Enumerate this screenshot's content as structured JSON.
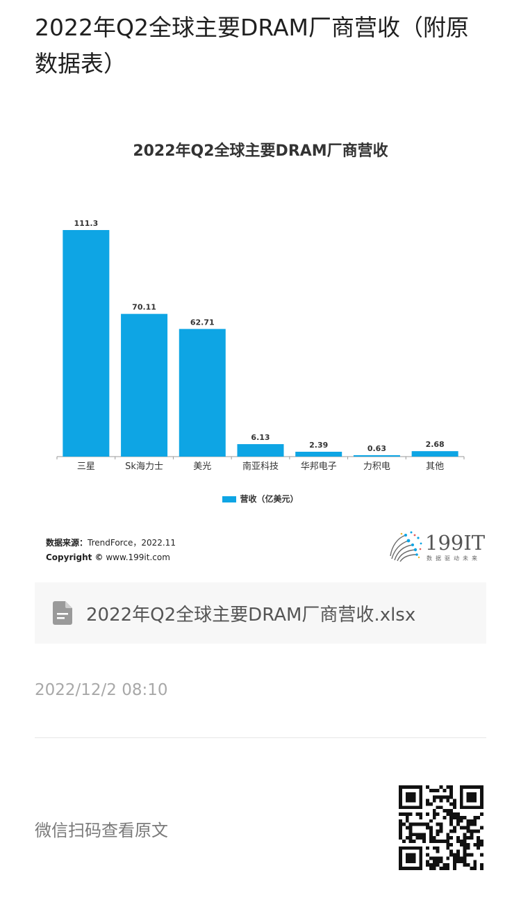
{
  "article": {
    "title": "2022年Q2全球主要DRAM厂商营收（附原数据表）",
    "date": "2022/12/2 08:10"
  },
  "chart": {
    "source_label": "数据来源：",
    "source_value": "TrendForce，2022.11",
    "copyright_label": "Copyright ©",
    "copyright_value": " www.199it.com",
    "brand_name": "199IT",
    "brand_slogan": "数据驱动未来"
  },
  "chart_data": {
    "type": "bar",
    "title": "2022年Q2全球主要DRAM厂商营收",
    "categories": [
      "三星",
      "Sk海力士",
      "美光",
      "南亚科技",
      "华邦电子",
      "力积电",
      "其他"
    ],
    "series": [
      {
        "name": "营收（亿美元）",
        "values": [
          111.3,
          70.11,
          62.71,
          6.13,
          2.39,
          0.63,
          2.68
        ]
      }
    ],
    "value_labels": [
      "111.3",
      "70.11",
      "62.71",
      "6.13",
      "2.39",
      "0.63",
      "2.68"
    ],
    "ylim": [
      0,
      111.3
    ],
    "grid": false,
    "legend_position": "bottom",
    "color": "#0ea5e4"
  },
  "attachment": {
    "file_name": "2022年Q2全球主要DRAM厂商营收.xlsx",
    "icon": "document-icon"
  },
  "footer": {
    "scan_text": "微信扫码查看原文",
    "qr_icon": "qr-code-icon"
  }
}
